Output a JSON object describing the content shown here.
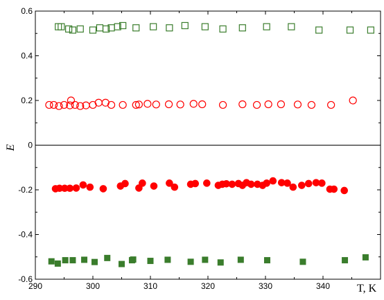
{
  "chart_data": {
    "type": "scatter",
    "xlabel": "T, K",
    "ylabel": "E",
    "xlim": [
      290,
      350
    ],
    "ylim": [
      -0.6,
      0.6
    ],
    "x_ticks": [
      290,
      300,
      310,
      320,
      330,
      340
    ],
    "x_tick_labels": [
      "290",
      "300",
      "310",
      "320",
      "330",
      "340"
    ],
    "y_ticks": [
      -0.6,
      -0.4,
      -0.2,
      0,
      0.2,
      0.4,
      0.6
    ],
    "y_tick_labels": [
      "-0.6",
      "-0.4",
      "-0.2",
      "0",
      "0.2",
      "0.4",
      "0.6"
    ],
    "zero_line": true,
    "grid": false,
    "series": [
      {
        "marker": "square-open",
        "color": "#3a7d2c",
        "points": [
          [
            294.0,
            0.53
          ],
          [
            294.5,
            0.53
          ],
          [
            295.8,
            0.52
          ],
          [
            296.5,
            0.515
          ],
          [
            297.8,
            0.52
          ],
          [
            300.0,
            0.515
          ],
          [
            301.2,
            0.525
          ],
          [
            302.3,
            0.52
          ],
          [
            303.2,
            0.525
          ],
          [
            304.3,
            0.53
          ],
          [
            305.2,
            0.535
          ],
          [
            307.5,
            0.525
          ],
          [
            310.5,
            0.53
          ],
          [
            313.3,
            0.525
          ],
          [
            316.0,
            0.535
          ],
          [
            319.5,
            0.53
          ],
          [
            322.6,
            0.52
          ],
          [
            326.0,
            0.525
          ],
          [
            330.2,
            0.53
          ],
          [
            334.5,
            0.53
          ],
          [
            339.3,
            0.515
          ],
          [
            344.7,
            0.515
          ],
          [
            348.3,
            0.515
          ]
        ]
      },
      {
        "marker": "circle-open",
        "color": "#ff0000",
        "points": [
          [
            292.4,
            0.18
          ],
          [
            293.2,
            0.18
          ],
          [
            294.1,
            0.175
          ],
          [
            295.0,
            0.18
          ],
          [
            296.0,
            0.178
          ],
          [
            296.2,
            0.2
          ],
          [
            296.9,
            0.18
          ],
          [
            297.8,
            0.175
          ],
          [
            298.8,
            0.178
          ],
          [
            300.0,
            0.18
          ],
          [
            301.0,
            0.19
          ],
          [
            302.2,
            0.19
          ],
          [
            303.2,
            0.18
          ],
          [
            305.2,
            0.18
          ],
          [
            307.5,
            0.18
          ],
          [
            308.0,
            0.182
          ],
          [
            309.5,
            0.185
          ],
          [
            311.0,
            0.182
          ],
          [
            313.2,
            0.183
          ],
          [
            315.2,
            0.182
          ],
          [
            317.5,
            0.185
          ],
          [
            319.0,
            0.183
          ],
          [
            322.6,
            0.18
          ],
          [
            326.0,
            0.183
          ],
          [
            328.5,
            0.18
          ],
          [
            330.5,
            0.183
          ],
          [
            332.7,
            0.183
          ],
          [
            335.6,
            0.182
          ],
          [
            338.0,
            0.18
          ],
          [
            341.4,
            0.18
          ],
          [
            345.2,
            0.2
          ]
        ]
      },
      {
        "marker": "circle-filled",
        "color": "#ff0000",
        "points": [
          [
            293.5,
            -0.195
          ],
          [
            294.2,
            -0.193
          ],
          [
            295.1,
            -0.193
          ],
          [
            296.0,
            -0.193
          ],
          [
            297.1,
            -0.192
          ],
          [
            298.3,
            -0.178
          ],
          [
            299.5,
            -0.188
          ],
          [
            301.8,
            -0.195
          ],
          [
            304.8,
            -0.183
          ],
          [
            305.6,
            -0.172
          ],
          [
            308.0,
            -0.192
          ],
          [
            308.6,
            -0.17
          ],
          [
            310.6,
            -0.183
          ],
          [
            313.3,
            -0.17
          ],
          [
            314.2,
            -0.188
          ],
          [
            317.0,
            -0.175
          ],
          [
            317.8,
            -0.172
          ],
          [
            319.8,
            -0.17
          ],
          [
            321.8,
            -0.18
          ],
          [
            322.5,
            -0.175
          ],
          [
            323.2,
            -0.173
          ],
          [
            324.2,
            -0.175
          ],
          [
            325.3,
            -0.172
          ],
          [
            326.0,
            -0.18
          ],
          [
            326.7,
            -0.168
          ],
          [
            327.5,
            -0.175
          ],
          [
            328.6,
            -0.175
          ],
          [
            329.5,
            -0.18
          ],
          [
            330.2,
            -0.17
          ],
          [
            331.3,
            -0.16
          ],
          [
            332.8,
            -0.168
          ],
          [
            333.8,
            -0.17
          ],
          [
            334.8,
            -0.188
          ],
          [
            336.3,
            -0.18
          ],
          [
            337.5,
            -0.172
          ],
          [
            338.8,
            -0.168
          ],
          [
            339.8,
            -0.17
          ],
          [
            341.2,
            -0.197
          ],
          [
            341.9,
            -0.197
          ],
          [
            343.7,
            -0.203
          ]
        ]
      },
      {
        "marker": "square-filled",
        "color": "#3a7d2c",
        "points": [
          [
            292.8,
            -0.52
          ],
          [
            293.9,
            -0.53
          ],
          [
            295.2,
            -0.515
          ],
          [
            296.5,
            -0.515
          ],
          [
            298.5,
            -0.513
          ],
          [
            300.3,
            -0.523
          ],
          [
            302.5,
            -0.505
          ],
          [
            305.0,
            -0.532
          ],
          [
            306.8,
            -0.515
          ],
          [
            307.0,
            -0.512
          ],
          [
            310.0,
            -0.518
          ],
          [
            313.0,
            -0.513
          ],
          [
            317.0,
            -0.522
          ],
          [
            319.5,
            -0.513
          ],
          [
            322.2,
            -0.525
          ],
          [
            325.7,
            -0.513
          ],
          [
            330.3,
            -0.515
          ],
          [
            336.5,
            -0.522
          ],
          [
            343.8,
            -0.515
          ],
          [
            347.4,
            -0.502
          ]
        ]
      }
    ]
  }
}
